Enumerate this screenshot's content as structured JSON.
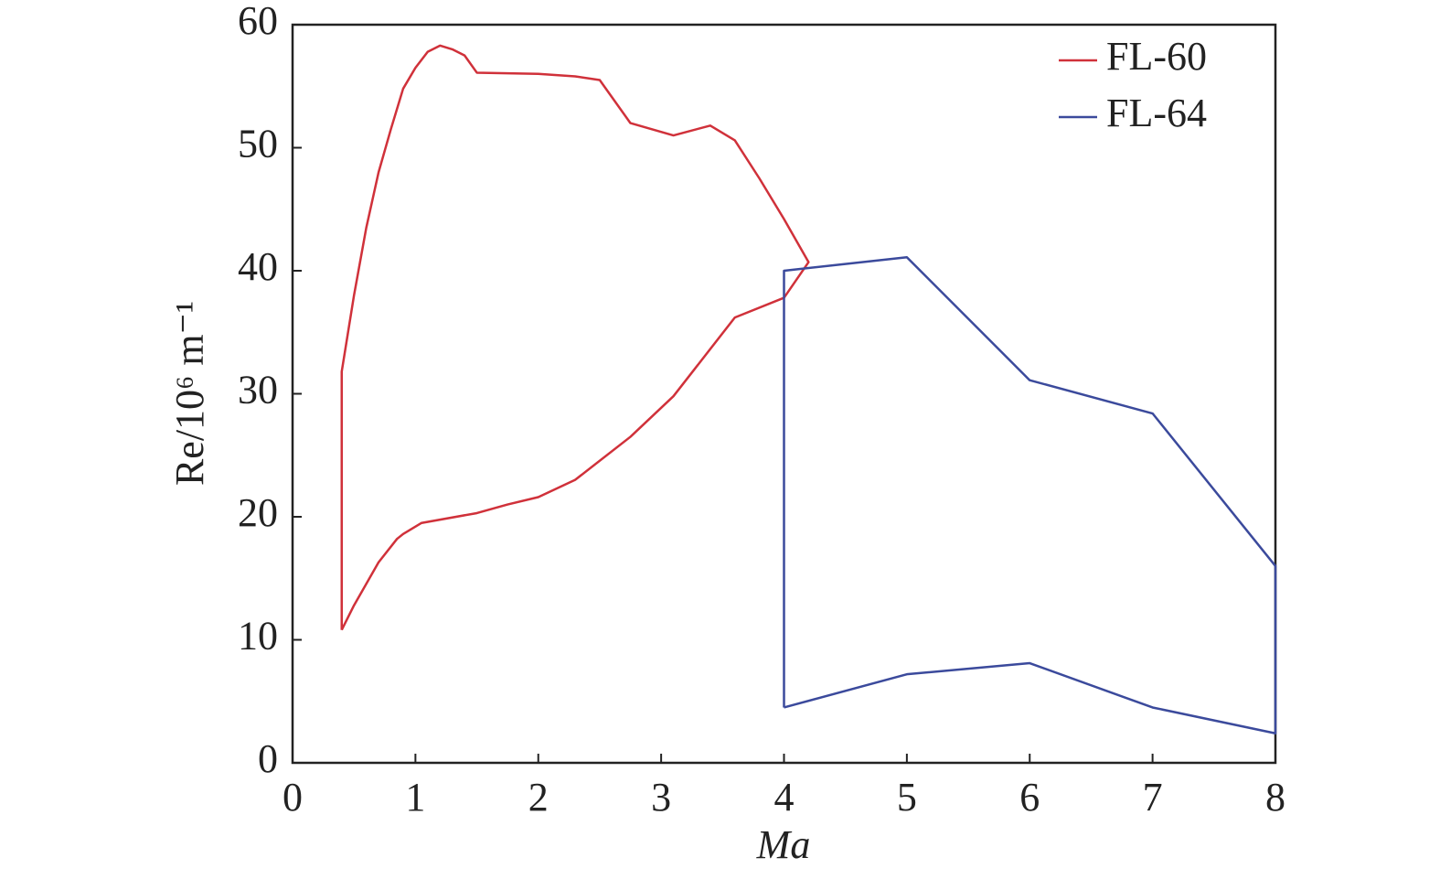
{
  "chart_data": {
    "type": "line",
    "x_label": "Ma",
    "y_label": "Re/10⁶ m⁻¹",
    "series": [
      {
        "name": "FL-60",
        "color": "#d0313a",
        "x": [
          0.4,
          0.4,
          0.5,
          0.6,
          0.7,
          0.8,
          0.9,
          1.0,
          1.1,
          1.2,
          1.3,
          1.4,
          1.5,
          2.0,
          2.3,
          2.5,
          2.75,
          3.1,
          3.4,
          3.6,
          3.8,
          4.0,
          4.2,
          4.0,
          3.6,
          3.1,
          2.75,
          2.3,
          2.0,
          1.75,
          1.5,
          1.05,
          0.9,
          0.85,
          0.7,
          0.5,
          0.4
        ],
        "values": [
          10.8,
          31.8,
          38,
          43.5,
          48,
          51.5,
          54.8,
          56.5,
          57.8,
          58.3,
          58,
          57.5,
          56.1,
          56,
          55.8,
          55.5,
          52,
          51,
          51.8,
          50.6,
          47.5,
          44.2,
          40.7,
          37.8,
          36.2,
          29.8,
          26.5,
          23,
          21.6,
          21,
          20.3,
          19.5,
          18.6,
          18.2,
          16.3,
          12.8,
          10.8
        ]
      },
      {
        "name": "FL-64",
        "color": "#3b4a9c",
        "x": [
          4,
          4,
          5,
          6,
          7,
          8,
          8,
          7,
          6,
          5,
          4
        ],
        "values": [
          4.5,
          40,
          41.1,
          31.1,
          28.4,
          16,
          2.4,
          4.5,
          8.1,
          7.2,
          4.5
        ]
      }
    ],
    "xlim": [
      0,
      8
    ],
    "xticks": [
      0,
      1,
      2,
      3,
      4,
      5,
      6,
      7,
      8
    ],
    "ylim": [
      0,
      60
    ],
    "yticks": [
      0,
      10,
      20,
      30,
      40,
      50,
      60
    ],
    "grid": false,
    "legend": "upper right"
  }
}
